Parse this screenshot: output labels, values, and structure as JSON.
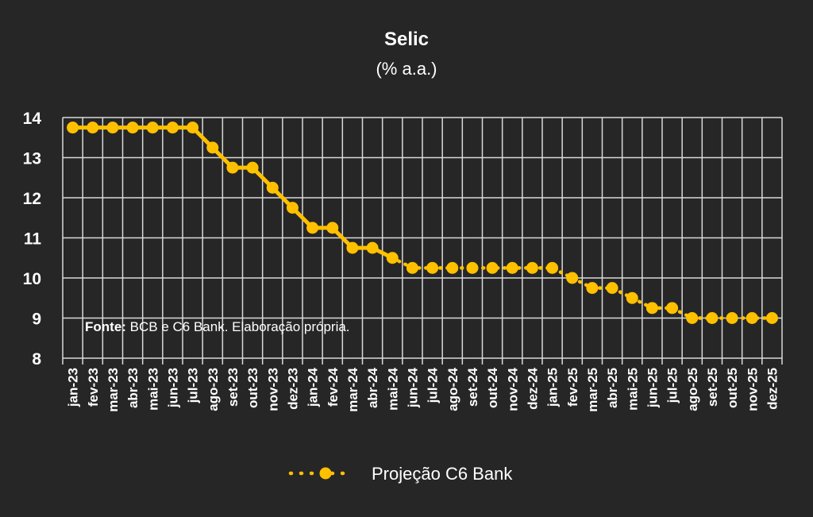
{
  "chart_data": {
    "type": "line",
    "title": "Selic",
    "subtitle": "(% a.a.)",
    "categories": [
      "jan-23",
      "fev-23",
      "mar-23",
      "abr-23",
      "mai-23",
      "jun-23",
      "jul-23",
      "ago-23",
      "set-23",
      "out-23",
      "nov-23",
      "dez-23",
      "jan-24",
      "fev-24",
      "mar-24",
      "abr-24",
      "mai-24",
      "jun-24",
      "jul-24",
      "ago-24",
      "set-24",
      "out-24",
      "nov-24",
      "dez-24",
      "jan-25",
      "fev-25",
      "mar-25",
      "abr-25",
      "mai-25",
      "jun-25",
      "jul-25",
      "ago-25",
      "set-25",
      "out-25",
      "nov-25",
      "dez-25"
    ],
    "series": [
      {
        "name": "Projeção C6 Bank",
        "values": [
          13.75,
          13.75,
          13.75,
          13.75,
          13.75,
          13.75,
          13.75,
          13.25,
          12.75,
          12.75,
          12.25,
          11.75,
          11.25,
          11.25,
          10.75,
          10.75,
          10.5,
          10.25,
          10.25,
          10.25,
          10.25,
          10.25,
          10.25,
          10.25,
          10.25,
          10.0,
          9.75,
          9.75,
          9.5,
          9.25,
          9.25,
          9.0,
          9.0,
          9.0,
          9.0,
          9.0
        ],
        "solid_until_index": 16,
        "color": "#FFC000"
      }
    ],
    "ylim": [
      8,
      14
    ],
    "yticks": [
      "8",
      "9",
      "10",
      "11",
      "12",
      "13",
      "14"
    ],
    "grid": true,
    "legend_position": "bottom",
    "source_label": "Fonte:",
    "source_text": " BCB e C6 Bank. Elaboração própria."
  },
  "colors": {
    "background": "#262626",
    "grid": "#D9D9D9",
    "text": "#FFFFFF",
    "series": "#FFC000"
  }
}
